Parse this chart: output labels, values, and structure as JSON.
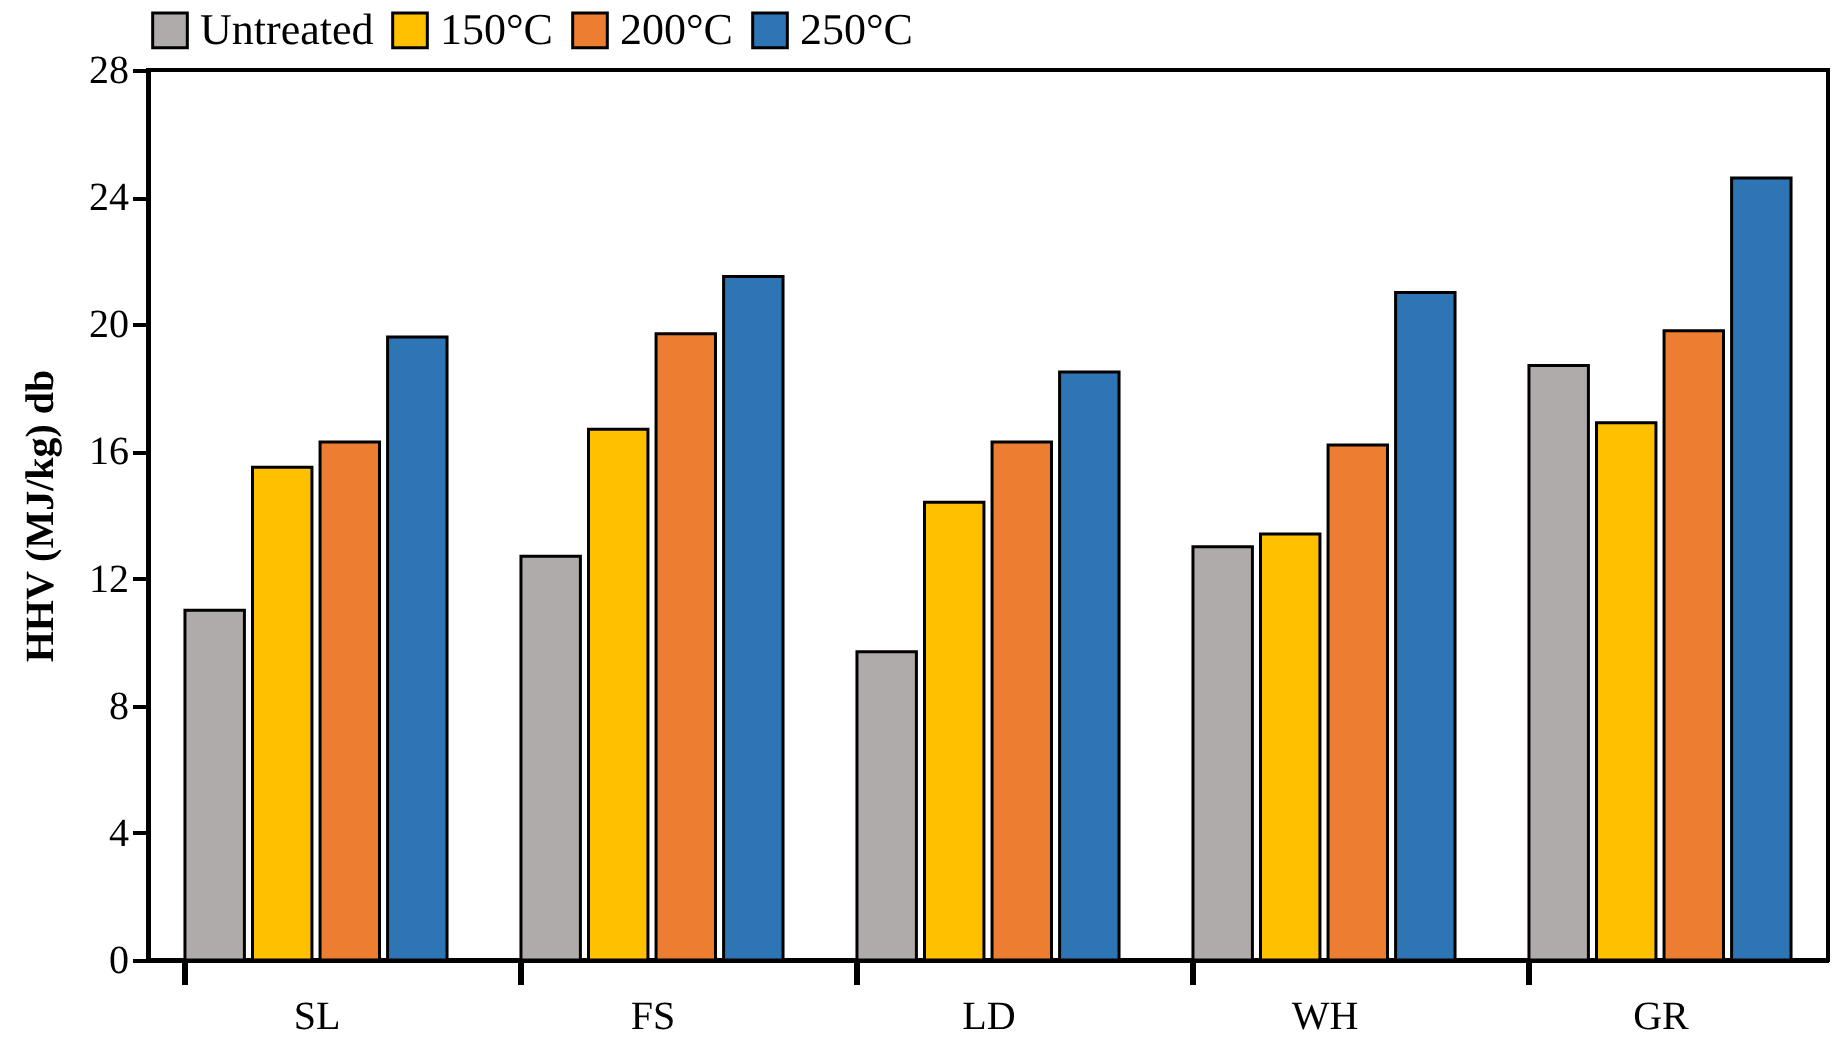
{
  "chart_data": {
    "type": "bar",
    "ylabel": "HHV (MJ/kg) db",
    "categories": [
      "SL",
      "FS",
      "LD",
      "WH",
      "GR"
    ],
    "series": [
      {
        "name": "Untreated",
        "color": "#afabab",
        "values": [
          11.0,
          12.7,
          9.7,
          13.0,
          18.7
        ]
      },
      {
        "name": "150°C",
        "color": "#ffc000",
        "values": [
          15.5,
          16.7,
          14.4,
          13.4,
          16.9
        ]
      },
      {
        "name": "200°C",
        "color": "#ed7d31",
        "values": [
          16.3,
          19.7,
          16.3,
          16.2,
          19.8
        ]
      },
      {
        "name": "250°C",
        "color": "#2e75b6",
        "values": [
          19.6,
          21.5,
          18.5,
          21.0,
          24.6
        ]
      }
    ],
    "ylim": [
      0,
      28
    ],
    "yticks": [
      0,
      4,
      8,
      12,
      16,
      20,
      24,
      28
    ],
    "grid": false,
    "legend": "top"
  }
}
